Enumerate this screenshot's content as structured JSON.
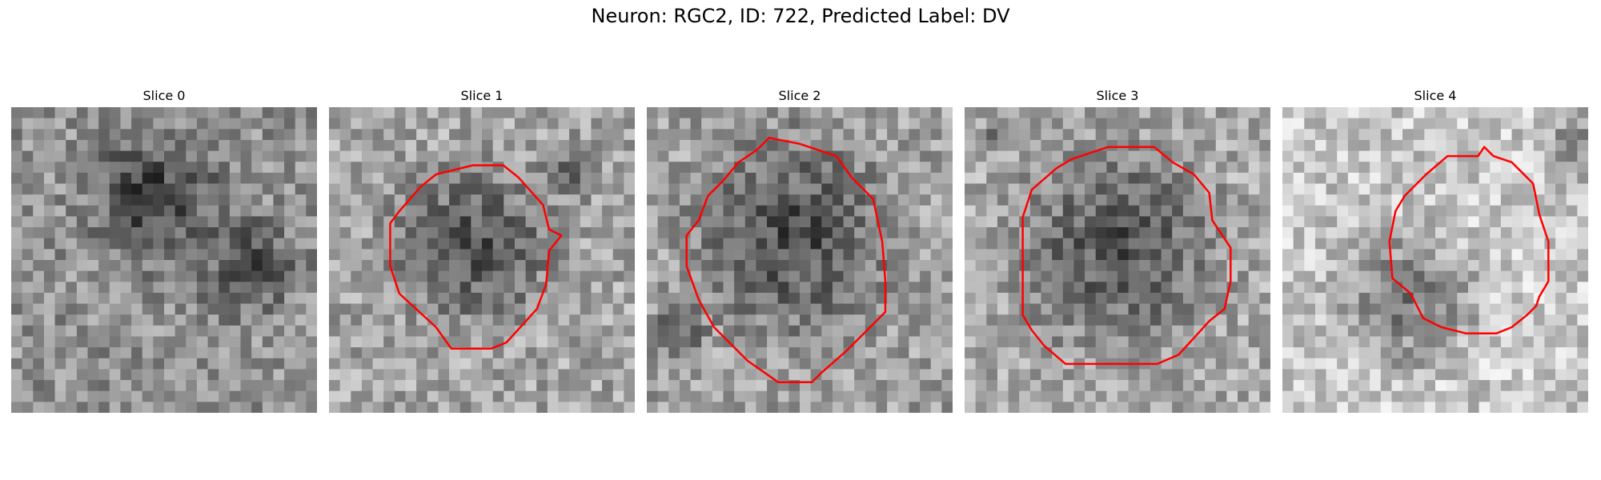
{
  "figure": {
    "title": "Neuron: RGC2, ID: 722, Predicted Label: DV"
  },
  "panels": [
    {
      "title": "Slice 0",
      "has_contour": false,
      "seed": 11,
      "bright_mean": 145,
      "spot": [
        0.47,
        0.3,
        0.22
      ],
      "spot2": [
        0.77,
        0.52,
        0.18
      ]
    },
    {
      "title": "Slice 1",
      "has_contour": true,
      "seed": 23,
      "bright_mean": 165,
      "spot": [
        0.47,
        0.45,
        0.27
      ],
      "spot2": [
        0.8,
        0.2,
        0.1
      ],
      "contour": [
        [
          0.3,
          0.26
        ],
        [
          0.35,
          0.22
        ],
        [
          0.47,
          0.19
        ],
        [
          0.57,
          0.19
        ],
        [
          0.62,
          0.23
        ],
        [
          0.7,
          0.32
        ],
        [
          0.72,
          0.4
        ],
        [
          0.76,
          0.42
        ],
        [
          0.72,
          0.47
        ],
        [
          0.71,
          0.58
        ],
        [
          0.68,
          0.66
        ],
        [
          0.58,
          0.77
        ],
        [
          0.53,
          0.79
        ],
        [
          0.4,
          0.79
        ],
        [
          0.35,
          0.72
        ],
        [
          0.23,
          0.61
        ],
        [
          0.2,
          0.52
        ],
        [
          0.2,
          0.38
        ],
        [
          0.23,
          0.34
        ]
      ]
    },
    {
      "title": "Slice 2",
      "has_contour": true,
      "seed": 37,
      "bright_mean": 160,
      "spot": [
        0.48,
        0.42,
        0.33
      ],
      "spot2": [
        0.1,
        0.75,
        0.1
      ],
      "contour": [
        [
          0.17,
          0.37
        ],
        [
          0.2,
          0.29
        ],
        [
          0.25,
          0.24
        ],
        [
          0.3,
          0.18
        ],
        [
          0.36,
          0.14
        ],
        [
          0.4,
          0.1
        ],
        [
          0.5,
          0.12
        ],
        [
          0.62,
          0.16
        ],
        [
          0.67,
          0.23
        ],
        [
          0.74,
          0.3
        ],
        [
          0.77,
          0.44
        ],
        [
          0.78,
          0.57
        ],
        [
          0.78,
          0.67
        ],
        [
          0.74,
          0.71
        ],
        [
          0.65,
          0.8
        ],
        [
          0.57,
          0.87
        ],
        [
          0.54,
          0.9
        ],
        [
          0.43,
          0.9
        ],
        [
          0.33,
          0.83
        ],
        [
          0.27,
          0.77
        ],
        [
          0.22,
          0.72
        ],
        [
          0.17,
          0.63
        ],
        [
          0.13,
          0.52
        ],
        [
          0.13,
          0.42
        ]
      ]
    },
    {
      "title": "Slice 3",
      "has_contour": true,
      "seed": 53,
      "bright_mean": 168,
      "spot": [
        0.5,
        0.46,
        0.34
      ],
      "spot2": [
        0.1,
        0.1,
        0.05
      ],
      "contour": [
        [
          0.22,
          0.27
        ],
        [
          0.3,
          0.2
        ],
        [
          0.35,
          0.17
        ],
        [
          0.47,
          0.13
        ],
        [
          0.62,
          0.13
        ],
        [
          0.68,
          0.18
        ],
        [
          0.75,
          0.22
        ],
        [
          0.8,
          0.28
        ],
        [
          0.81,
          0.37
        ],
        [
          0.87,
          0.46
        ],
        [
          0.87,
          0.57
        ],
        [
          0.85,
          0.66
        ],
        [
          0.8,
          0.7
        ],
        [
          0.7,
          0.81
        ],
        [
          0.63,
          0.84
        ],
        [
          0.33,
          0.84
        ],
        [
          0.26,
          0.78
        ],
        [
          0.22,
          0.73
        ],
        [
          0.19,
          0.68
        ],
        [
          0.19,
          0.5
        ],
        [
          0.19,
          0.36
        ]
      ]
    },
    {
      "title": "Slice 4",
      "has_contour": true,
      "seed": 71,
      "bright_mean": 200,
      "spot": [
        0.4,
        0.63,
        0.23
      ],
      "spot2": [
        0.95,
        0.12,
        0.12
      ],
      "contour": [
        [
          0.4,
          0.29
        ],
        [
          0.47,
          0.22
        ],
        [
          0.54,
          0.16
        ],
        [
          0.64,
          0.16
        ],
        [
          0.66,
          0.13
        ],
        [
          0.69,
          0.16
        ],
        [
          0.75,
          0.18
        ],
        [
          0.82,
          0.25
        ],
        [
          0.84,
          0.35
        ],
        [
          0.87,
          0.44
        ],
        [
          0.87,
          0.57
        ],
        [
          0.84,
          0.62
        ],
        [
          0.83,
          0.65
        ],
        [
          0.8,
          0.68
        ],
        [
          0.75,
          0.72
        ],
        [
          0.7,
          0.74
        ],
        [
          0.6,
          0.74
        ],
        [
          0.52,
          0.72
        ],
        [
          0.46,
          0.69
        ],
        [
          0.42,
          0.61
        ],
        [
          0.36,
          0.56
        ],
        [
          0.35,
          0.44
        ],
        [
          0.37,
          0.34
        ]
      ]
    }
  ],
  "colors": {
    "contour": "#ff0000",
    "background": "#ffffff"
  },
  "grid": {
    "pixels": 28
  }
}
